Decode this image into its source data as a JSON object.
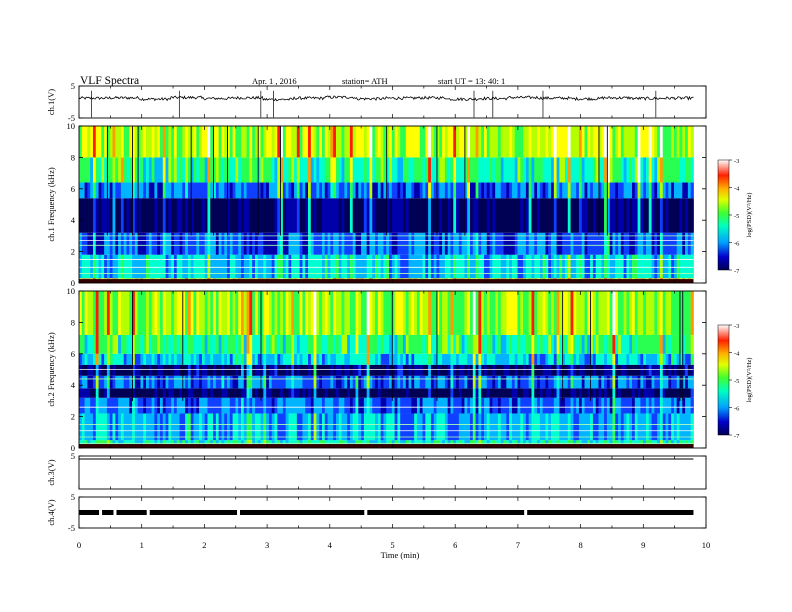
{
  "header": {
    "title": "VLF  Spectra",
    "date": "Apr. 1  , 2016",
    "station": "station= ATH",
    "start": "start  UT =    13: 40: 1"
  },
  "colors": {
    "spectro_scale": [
      "#000055",
      "#0000aa",
      "#1040ff",
      "#00b4ff",
      "#00ffd0",
      "#28ff50",
      "#b4ff00",
      "#ffff00",
      "#ff9a00",
      "#ff1a00",
      "#ffffff"
    ],
    "trace": "#000000"
  },
  "colorbar": {
    "label": "log(PSD)(V²/Hz)",
    "ticks": [
      "-3",
      "-4",
      "-5",
      "-6",
      "-7"
    ]
  },
  "chart_data": [
    {
      "type": "line",
      "panel": "ch1-waveform",
      "ylabel": "ch.1(V)",
      "ylim": [
        -5,
        5
      ],
      "yticks": [
        "5",
        "-5"
      ],
      "series": [
        {
          "values": [
            1.2,
            1.3,
            0.9,
            1.4,
            1.1,
            1.3,
            0.8,
            1.2,
            1.5,
            1.0,
            1.2,
            1.3,
            0.9,
            1.1,
            1.4,
            1.2,
            1.0,
            1.3,
            1.1,
            1.2
          ]
        }
      ],
      "spikes_min": [
        0.2,
        1.6,
        2.9,
        3.1,
        6.3,
        6.6,
        7.4,
        9.2
      ]
    },
    {
      "type": "heatmap",
      "panel": "ch1-spectrogram",
      "ylabel": "ch.1  Frequency  (kHz)",
      "ylim": [
        0,
        10
      ],
      "yticks": [
        "0",
        "2",
        "4",
        "6",
        "8",
        "10"
      ],
      "bands": [
        {
          "f0": 0.0,
          "f1": 0.3,
          "level": -4.2
        },
        {
          "f0": 0.3,
          "f1": 1.8,
          "level": -5.6
        },
        {
          "f0": 1.8,
          "f1": 3.2,
          "level": -6.1
        },
        {
          "f0": 3.2,
          "f1": 5.4,
          "level": -6.8
        },
        {
          "f0": 5.4,
          "f1": 6.4,
          "level": -6.0
        },
        {
          "f0": 6.4,
          "f1": 8.0,
          "level": -5.2
        },
        {
          "f0": 8.0,
          "f1": 10.0,
          "level": -4.6
        }
      ],
      "lines_khz": [
        0.6,
        1.0,
        1.5,
        2.4,
        2.7,
        3.0
      ]
    },
    {
      "type": "heatmap",
      "panel": "ch2-spectrogram",
      "ylabel": "ch.2  Frequency  (kHz)",
      "ylim": [
        0,
        10
      ],
      "yticks": [
        "0",
        "2",
        "4",
        "6",
        "8",
        "10"
      ],
      "bands": [
        {
          "f0": 0.0,
          "f1": 0.5,
          "level": -5.4
        },
        {
          "f0": 0.5,
          "f1": 2.2,
          "level": -5.7
        },
        {
          "f0": 2.2,
          "f1": 3.2,
          "level": -6.0
        },
        {
          "f0": 3.2,
          "f1": 3.8,
          "level": -6.8
        },
        {
          "f0": 3.8,
          "f1": 4.6,
          "level": -6.0
        },
        {
          "f0": 4.6,
          "f1": 5.3,
          "level": -6.7
        },
        {
          "f0": 5.3,
          "f1": 6.0,
          "level": -5.6
        },
        {
          "f0": 6.0,
          "f1": 7.2,
          "level": -5.2
        },
        {
          "f0": 7.2,
          "f1": 10.0,
          "level": -4.7
        }
      ],
      "lines_khz": [
        0.3,
        0.7,
        1.1,
        1.5,
        2.6,
        4.4,
        5.0
      ]
    },
    {
      "type": "line",
      "panel": "ch3-waveform",
      "ylabel": "ch.3(V)",
      "ylim": [
        -5,
        5
      ],
      "yticks": [
        "5"
      ],
      "series": [
        {
          "values": [
            5,
            5,
            5,
            5,
            5
          ]
        }
      ]
    },
    {
      "type": "line",
      "panel": "ch4-waveform",
      "ylabel": "ch.4(V)",
      "ylim": [
        -5,
        5
      ],
      "yticks": [
        "5",
        "-5"
      ],
      "series": [
        {
          "values": [
            0,
            0,
            0,
            0,
            0
          ]
        }
      ]
    }
  ],
  "xaxis": {
    "label": "Time  (min)",
    "xlim": [
      0,
      10
    ],
    "ticks": [
      "0",
      "1",
      "2",
      "3",
      "4",
      "5",
      "6",
      "7",
      "8",
      "9",
      "10"
    ],
    "data_end": 9.8
  }
}
